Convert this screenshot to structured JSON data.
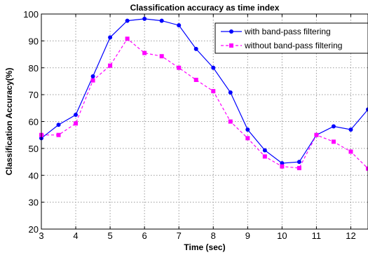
{
  "chart_data": {
    "type": "line",
    "title": "Classification accuracy as time index",
    "xlabel": "Time (sec)",
    "ylabel": "Classification Accuracy(%)",
    "xlim": [
      3,
      12.5
    ],
    "ylim": [
      20,
      100
    ],
    "xticks": [
      3,
      4,
      5,
      6,
      7,
      8,
      9,
      10,
      11,
      12
    ],
    "yticks": [
      20,
      30,
      40,
      50,
      60,
      70,
      80,
      90,
      100
    ],
    "grid": true,
    "legend_position": "top-right",
    "x": [
      3,
      3.5,
      4,
      4.5,
      5,
      5.5,
      6,
      6.5,
      7,
      7.5,
      8,
      8.5,
      9,
      9.5,
      10,
      10.5,
      11,
      11.5,
      12,
      12.5
    ],
    "series": [
      {
        "name": "with band-pass filtering",
        "color": "#0000ff",
        "line_style": "solid",
        "marker": "circle",
        "values": [
          53.8,
          58.8,
          62.5,
          76.8,
          91.3,
          97.5,
          98.2,
          97.5,
          95.8,
          87.0,
          80.0,
          70.8,
          57.0,
          49.3,
          44.5,
          45.0,
          55.0,
          58.2,
          57.0,
          64.5
        ]
      },
      {
        "name": "without band-pass filtering",
        "color": "#ff00ff",
        "line_style": "dashed",
        "marker": "square",
        "values": [
          55.0,
          55.0,
          59.3,
          75.3,
          80.8,
          90.8,
          85.5,
          84.3,
          80.0,
          75.5,
          71.3,
          60.0,
          53.8,
          47.0,
          43.3,
          42.7,
          55.0,
          52.5,
          48.8,
          42.5
        ]
      }
    ]
  }
}
